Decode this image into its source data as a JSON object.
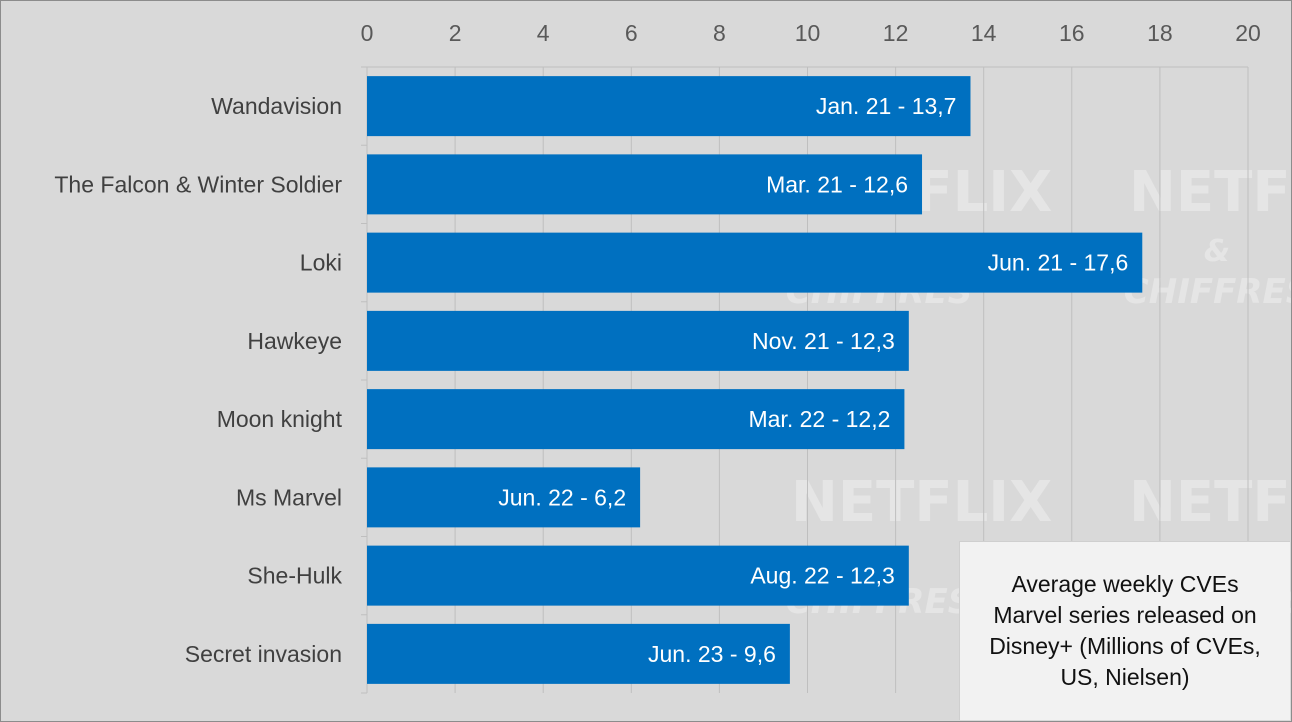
{
  "chart_data": {
    "type": "bar",
    "orientation": "horizontal",
    "categories": [
      "Wandavision",
      "The Falcon & Winter Soldier",
      "Loki",
      "Hawkeye",
      "Moon knight",
      "Ms Marvel",
      "She-Hulk",
      "Secret invasion"
    ],
    "values": [
      13.7,
      12.6,
      17.6,
      12.3,
      12.2,
      6.2,
      12.3,
      9.6
    ],
    "data_labels": [
      "Jan. 21 - 13,7",
      "Mar. 21 - 12,6",
      "Jun. 21 - 17,6",
      "Nov. 21 - 12,3",
      "Mar. 22 - 12,2",
      "Jun. 22 - 6,2",
      "Aug. 22 - 12,3",
      "Jun. 23 - 9,6"
    ],
    "xlim": [
      0,
      20
    ],
    "x_ticks": [
      0,
      2,
      4,
      6,
      8,
      10,
      12,
      14,
      16,
      18,
      20
    ],
    "x_axis_position": "top",
    "grid": true,
    "legend_text": "Average weekly CVEs Marvel series released on Disney+ (Millions of CVEs, US, Nielsen)",
    "legend_placement": "bottom-right",
    "watermark": [
      "NETFLIX",
      "&",
      "CHIFFRES"
    ],
    "colors": {
      "bar": "#0070c0",
      "background": "#d9d9d9",
      "grid": "#bfbfbf",
      "legend_bg": "#f2f2f2"
    }
  }
}
